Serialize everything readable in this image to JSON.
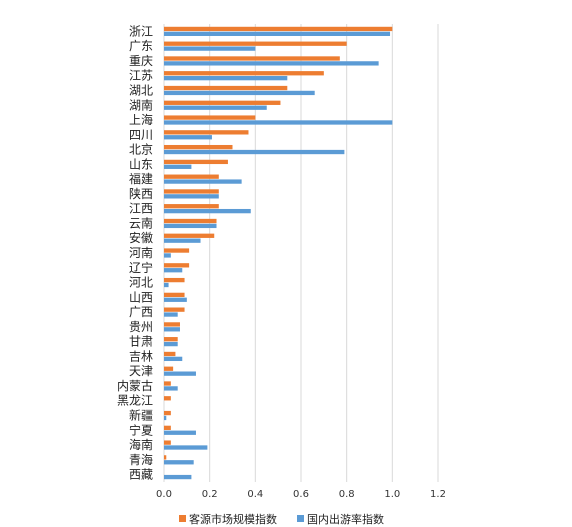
{
  "chart_data": {
    "type": "bar",
    "orientation": "horizontal",
    "categories": [
      "浙江",
      "广东",
      "重庆",
      "江苏",
      "湖北",
      "湖南",
      "上海",
      "四川",
      "北京",
      "山东",
      "福建",
      "陕西",
      "江西",
      "云南",
      "安徽",
      "河南",
      "辽宁",
      "河北",
      "山西",
      "广西",
      "贵州",
      "甘肃",
      "吉林",
      "天津",
      "内蒙古",
      "黑龙江",
      "新疆",
      "宁夏",
      "海南",
      "青海",
      "西藏"
    ],
    "series": [
      {
        "name": "客源市场规模指数",
        "color": "#ED7D31",
        "values": [
          1.0,
          0.8,
          0.77,
          0.7,
          0.54,
          0.51,
          0.4,
          0.37,
          0.3,
          0.28,
          0.24,
          0.24,
          0.24,
          0.23,
          0.22,
          0.11,
          0.11,
          0.09,
          0.09,
          0.09,
          0.07,
          0.06,
          0.05,
          0.04,
          0.03,
          0.03,
          0.03,
          0.03,
          0.03,
          0.01,
          0.0
        ]
      },
      {
        "name": "国内出游率指数",
        "color": "#5B9BD5",
        "values": [
          0.99,
          0.4,
          0.94,
          0.54,
          0.66,
          0.45,
          1.0,
          0.21,
          0.79,
          0.12,
          0.34,
          0.24,
          0.38,
          0.23,
          0.16,
          0.03,
          0.08,
          0.02,
          0.1,
          0.06,
          0.07,
          0.06,
          0.08,
          0.14,
          0.06,
          0.0,
          0.01,
          0.14,
          0.19,
          0.13,
          0.12
        ]
      }
    ],
    "xlim": [
      0,
      1.2
    ],
    "xticks": [
      "0.0",
      "0.2",
      "0.4",
      "0.6",
      "0.8",
      "1.0",
      "1.2"
    ],
    "grid": true,
    "legend_position": "bottom"
  }
}
